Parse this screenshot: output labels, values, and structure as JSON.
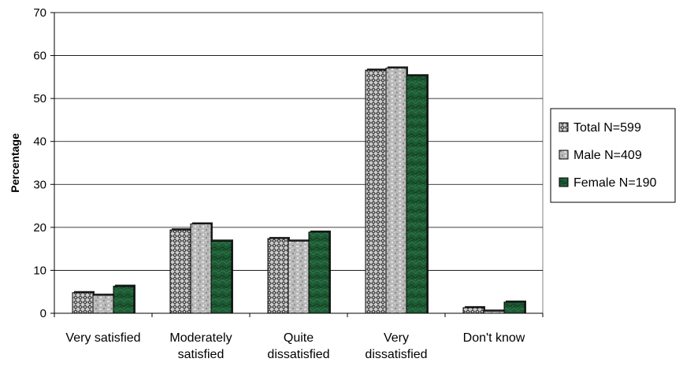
{
  "chart_data": {
    "type": "bar",
    "categories": [
      [
        "Very satisfied"
      ],
      [
        "Moderately",
        "satisfied"
      ],
      [
        "Quite",
        "dissatisfied"
      ],
      [
        "Very",
        "dissatisfied"
      ],
      [
        "Don't know"
      ]
    ],
    "series": [
      {
        "name": "Total N=599",
        "values": [
          4.8,
          19.4,
          17.4,
          56.6,
          1.3
        ],
        "color": "#3a3a3a",
        "pattern": "checker"
      },
      {
        "name": "Male N=409",
        "values": [
          4.2,
          20.8,
          16.8,
          57.1,
          0.5
        ],
        "color": "#b8b8b8",
        "pattern": "granite"
      },
      {
        "name": "Female N=190",
        "values": [
          6.3,
          16.8,
          18.9,
          55.3,
          2.6
        ],
        "color": "#1f5c36",
        "pattern": "marble"
      }
    ],
    "title": "",
    "xlabel": "",
    "ylabel": "Percentage",
    "ylim": [
      0,
      70
    ],
    "yticks": [
      0,
      10,
      20,
      30,
      40,
      50,
      60,
      70
    ],
    "grid": true,
    "legend_position": "right"
  }
}
